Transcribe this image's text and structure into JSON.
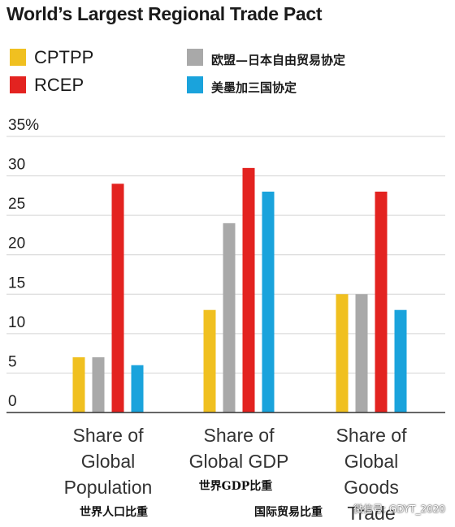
{
  "title": "World’s Largest Regional Trade Pact",
  "legend": [
    {
      "label": "CPTPP",
      "color": "#f0c020",
      "lang": "en"
    },
    {
      "label": "RCEP",
      "color": "#e32320",
      "lang": "en"
    },
    {
      "label": "欧盟—日本自由贸易协定",
      "color": "#a9a9a9",
      "lang": "zh"
    },
    {
      "label": "美墨加三国协定",
      "color": "#1aa3dc",
      "lang": "zh"
    }
  ],
  "chart_data": {
    "type": "bar",
    "title": "World’s Largest Regional Trade Pact",
    "ylim": [
      0,
      35
    ],
    "yticks": [
      "0",
      "5",
      "10",
      "15",
      "20",
      "25",
      "30",
      "35%"
    ],
    "grid": true,
    "legend_position": "top",
    "categories": [
      {
        "lines": [
          "Share of",
          "Global",
          "Population"
        ],
        "sub": "世界人口比重"
      },
      {
        "lines": [
          "Share of",
          "Global GDP"
        ],
        "sub": "世界GDP比重"
      },
      {
        "lines": [
          "Share of",
          "Global",
          "Goods",
          "Trade"
        ],
        "sub": "国际贸易比重"
      }
    ],
    "series": [
      {
        "name": "CPTPP",
        "color": "#f0c020",
        "values": [
          7,
          13,
          15
        ]
      },
      {
        "name": "欧盟—日本自由贸易协定",
        "color": "#a9a9a9",
        "values": [
          7,
          24,
          15
        ]
      },
      {
        "name": "RCEP",
        "color": "#e32320",
        "values": [
          29,
          31,
          28
        ]
      },
      {
        "name": "美墨加三国协定",
        "color": "#1aa3dc",
        "values": [
          6,
          28,
          13
        ]
      }
    ]
  },
  "watermark": "微信号: GDYT_2020"
}
